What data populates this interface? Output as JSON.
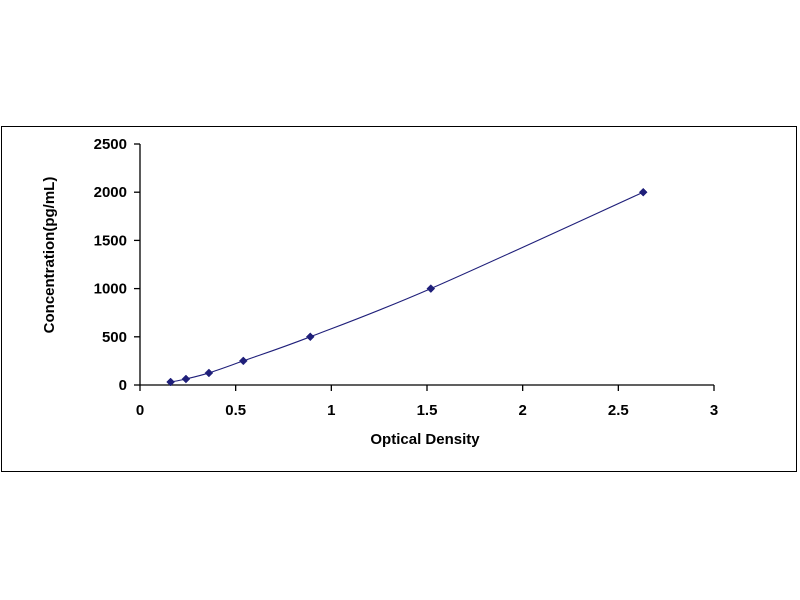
{
  "chart_data": {
    "type": "scatter",
    "xlabel": "Optical Density",
    "ylabel": "Concentration(pg/mL)",
    "xlim": [
      0,
      3
    ],
    "ylim": [
      0,
      2500
    ],
    "x_ticks": [
      "0",
      "0.5",
      "1",
      "1.5",
      "2",
      "2.5",
      "3"
    ],
    "y_ticks": [
      "0",
      "500",
      "1000",
      "1500",
      "2000",
      "2500"
    ],
    "grid": false,
    "legend": "none",
    "trendline": "smooth curve through points",
    "series": [
      {
        "x": [
          0.16,
          0.24,
          0.36,
          0.54,
          0.89,
          1.52,
          2.63
        ],
        "y": [
          31.25,
          62.5,
          125,
          250,
          500,
          1000,
          2000
        ],
        "marker": "diamond",
        "color": "#1f1f7a"
      }
    ]
  }
}
